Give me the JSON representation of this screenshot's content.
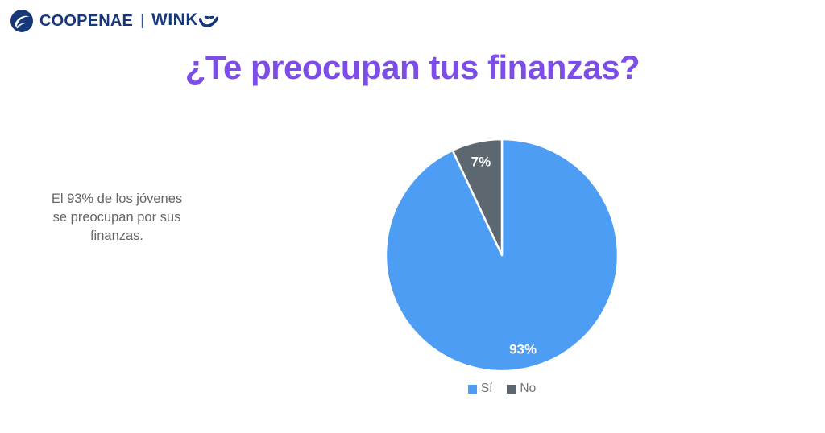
{
  "logo": {
    "brand": "COOPENAE",
    "separator": "|",
    "product": "WINK",
    "color": "#17377B"
  },
  "title": {
    "text": "¿Te preocupan tus finanzas?",
    "color": "#7C4DE8"
  },
  "aside": {
    "lines": [
      "El 93% de los jóvenes",
      "se preocupan por sus",
      "finanzas."
    ],
    "color": "#666666"
  },
  "chart_data": {
    "type": "pie",
    "title": "¿Te preocupan tus finanzas?",
    "categories": [
      "Sí",
      "No"
    ],
    "values": [
      93,
      7
    ],
    "slice_labels": [
      "93%",
      "7%"
    ],
    "colors": [
      "#4D9DF5",
      "#5C6770"
    ],
    "slice_label_color": "#ffffff",
    "slice_border_color": "#ffffff",
    "start_angle_deg": 0,
    "direction": "clockwise",
    "legend_position": "bottom",
    "legend_text_color": "#757575"
  }
}
